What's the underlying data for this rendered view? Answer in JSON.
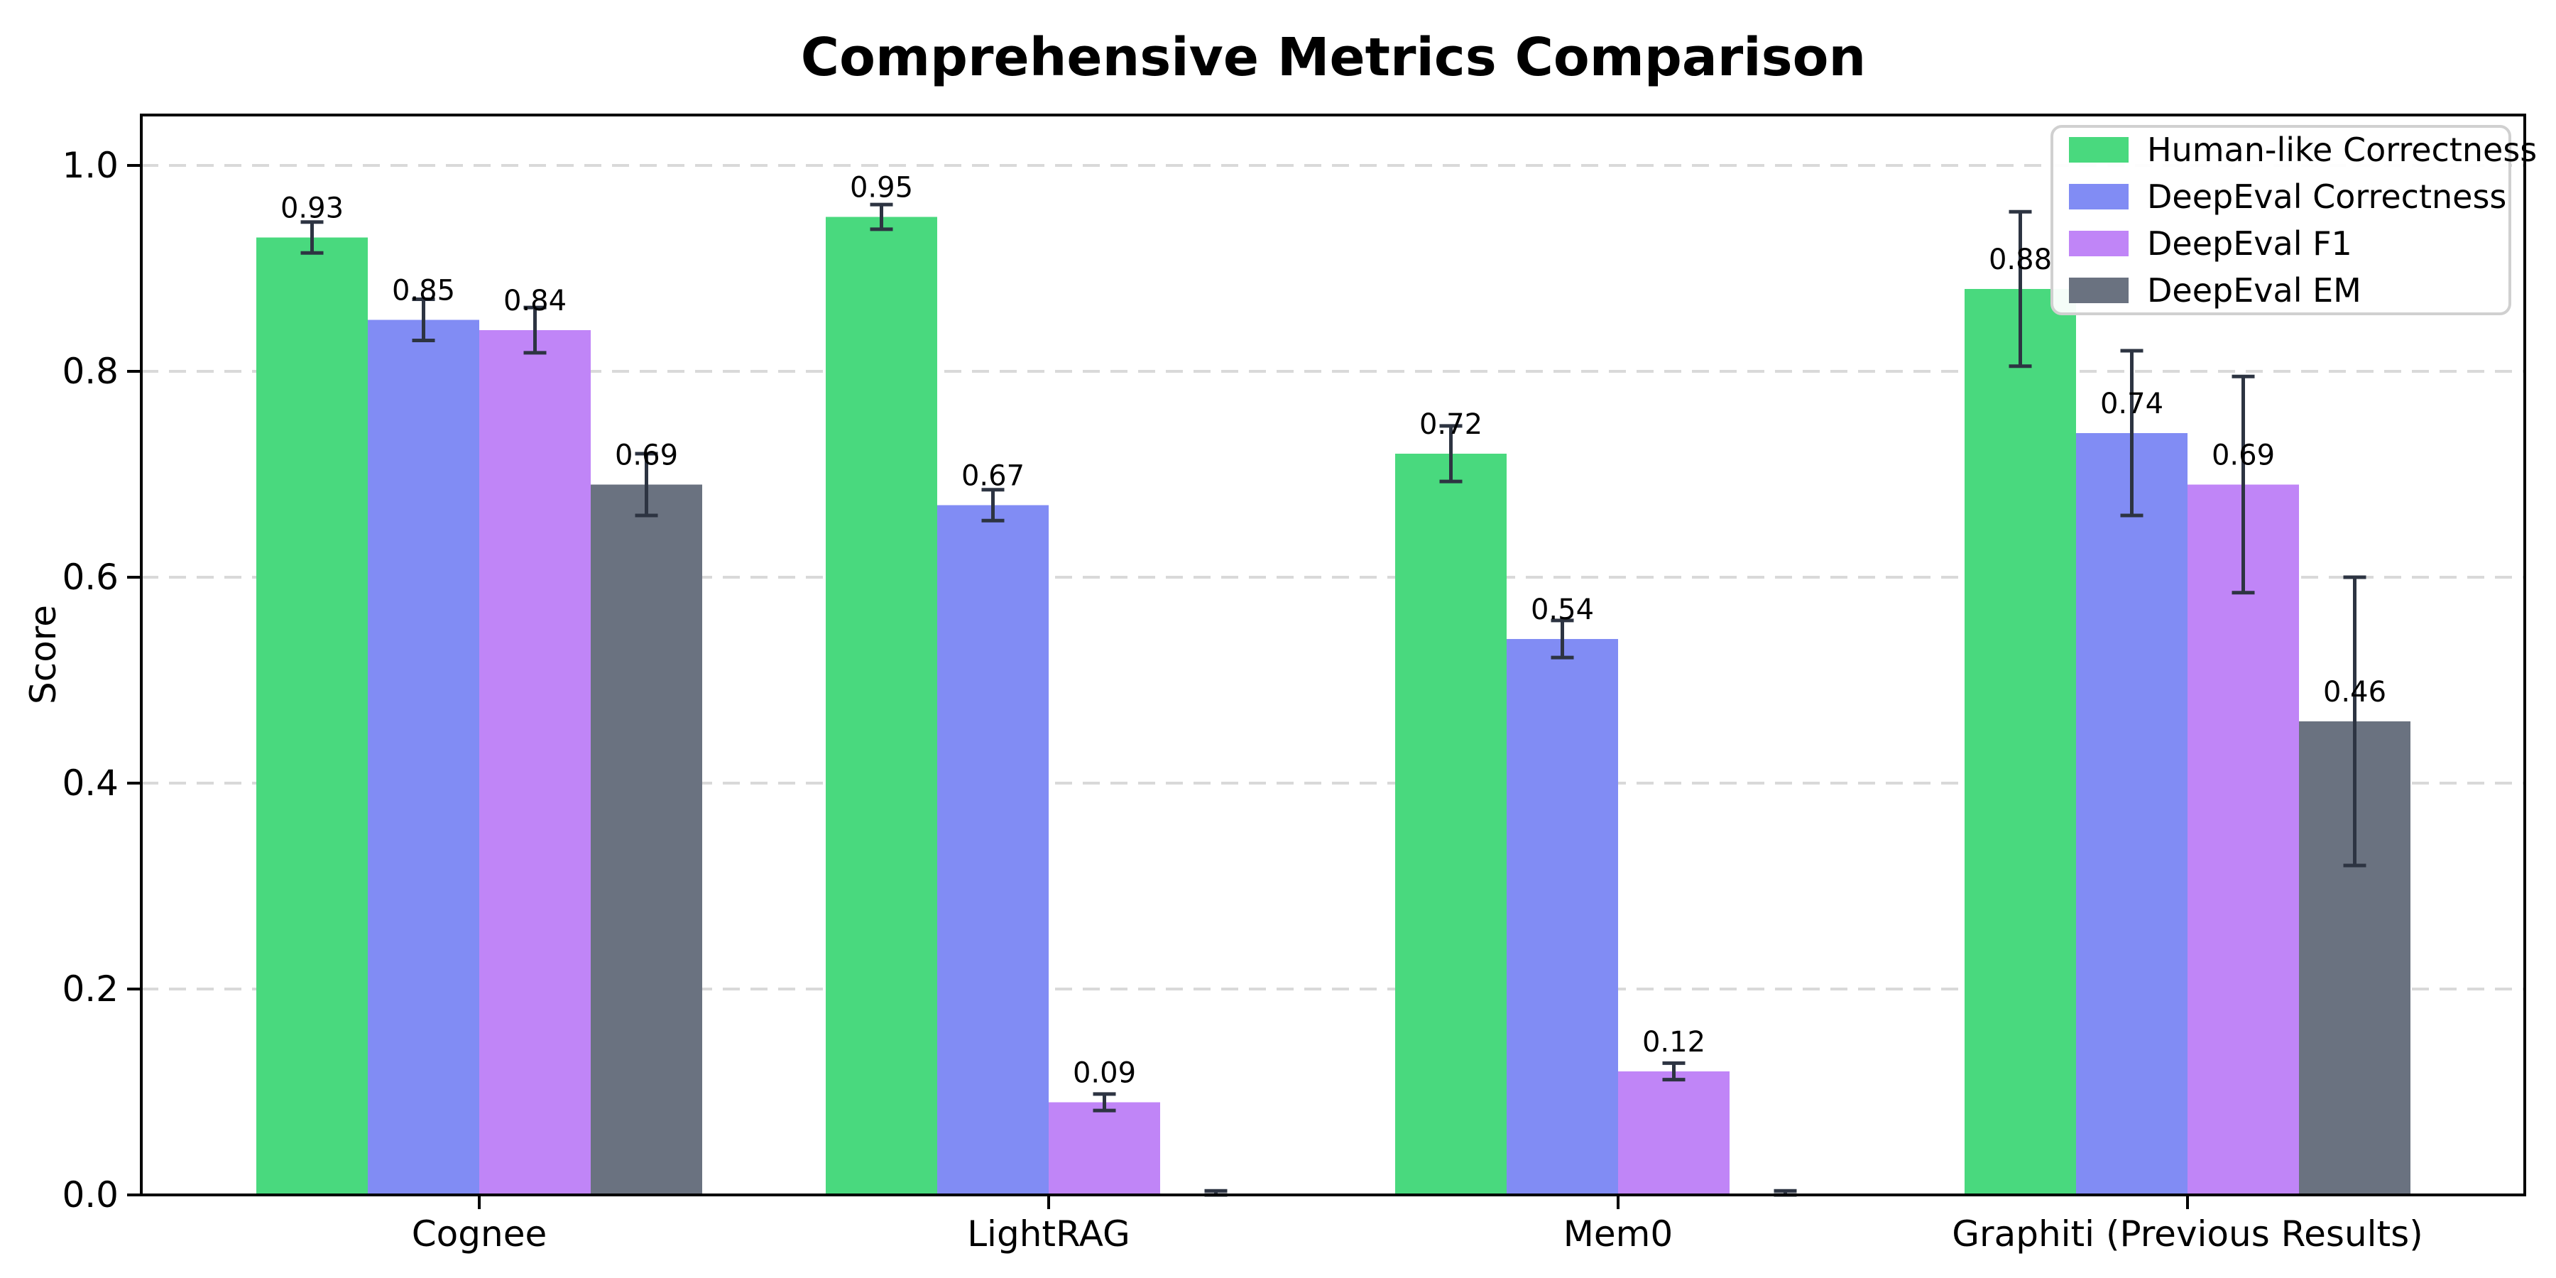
{
  "chart_data": {
    "type": "bar",
    "title": "Comprehensive Metrics Comparison",
    "ylabel": "Score",
    "xlabel": "",
    "categories": [
      "Cognee",
      "LightRAG",
      "Mem0",
      "Graphiti (Previous Results)"
    ],
    "ytick_labels": [
      "0.0",
      "0.2",
      "0.4",
      "0.6",
      "0.8",
      "1.0"
    ],
    "ytick_values": [
      0.0,
      0.2,
      0.4,
      0.6,
      0.8,
      1.0
    ],
    "ylim": [
      0,
      1.049
    ],
    "grid": "horizontal-dashed",
    "legend_position": "upper-right",
    "background_color": "#ffffff",
    "gridline_color": "#d9d9d9",
    "axis_color": "#000000",
    "error_bar_color": "#2d3442",
    "legend_border_color": "#d0d0d0",
    "series": [
      {
        "name": "Human-like Correctness",
        "color": "#49d97e",
        "values": [
          0.93,
          0.95,
          0.72,
          0.88
        ],
        "errors": [
          0.015,
          0.012,
          0.027,
          0.075
        ],
        "labels": [
          "0.93",
          "0.95",
          "0.72",
          "0.88"
        ]
      },
      {
        "name": "DeepEval Correctness",
        "color": "#818cf4",
        "values": [
          0.85,
          0.67,
          0.54,
          0.74
        ],
        "errors": [
          0.02,
          0.015,
          0.018,
          0.08
        ],
        "labels": [
          "0.85",
          "0.67",
          "0.54",
          "0.74"
        ]
      },
      {
        "name": "DeepEval F1",
        "color": "#c085f7",
        "values": [
          0.84,
          0.09,
          0.12,
          0.69
        ],
        "errors": [
          0.022,
          0.008,
          0.008,
          0.105
        ],
        "labels": [
          "0.84",
          "0.09",
          "0.12",
          "0.69"
        ]
      },
      {
        "name": "DeepEval EM",
        "color": "#6a7280",
        "values": [
          0.69,
          0.0,
          0.0,
          0.46
        ],
        "errors": [
          0.03,
          0.004,
          0.004,
          0.14
        ],
        "labels": [
          "0.69",
          null,
          null,
          "0.46"
        ]
      }
    ]
  }
}
